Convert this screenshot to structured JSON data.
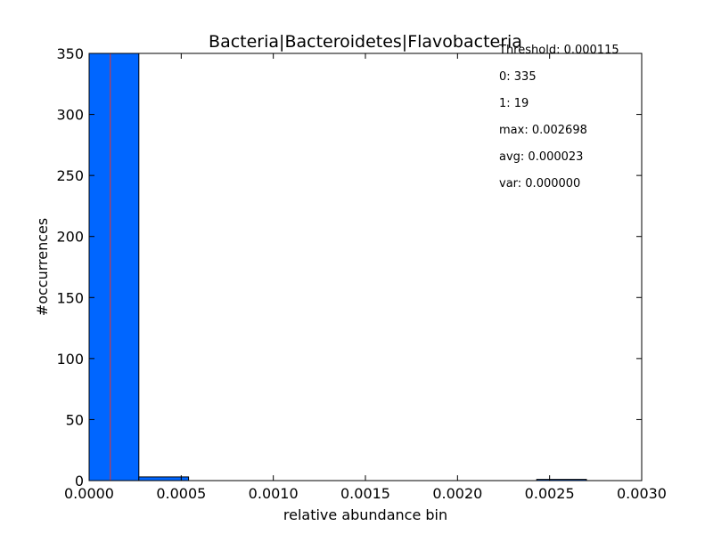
{
  "chart_data": {
    "type": "bar",
    "title": "Bacteria|Bacteroidetes|Flavobacteria",
    "xlabel": "relative abundance bin",
    "ylabel": "#occurrences",
    "xlim": [
      0,
      0.003
    ],
    "ylim": [
      0,
      350
    ],
    "xticks": [
      "0.0000",
      "0.0005",
      "0.0010",
      "0.0015",
      "0.0020",
      "0.0025",
      "0.0030"
    ],
    "yticks": [
      "0",
      "50",
      "100",
      "150",
      "200",
      "250",
      "300",
      "350"
    ],
    "bins": [
      {
        "start": 0.0,
        "end": 0.00027,
        "count": 350
      },
      {
        "start": 0.00027,
        "end": 0.00054,
        "count": 3
      },
      {
        "start": 0.00243,
        "end": 0.0027,
        "count": 1
      }
    ],
    "threshold_line": 0.000115,
    "annotations": [
      "Threshold: 0.000115",
      "0: 335",
      "1: 19",
      "max: 0.002698",
      "avg: 0.000023",
      "var: 0.000000"
    ],
    "grid": false,
    "bar_color": "#0066ff",
    "threshold_color": "#e8352a"
  }
}
